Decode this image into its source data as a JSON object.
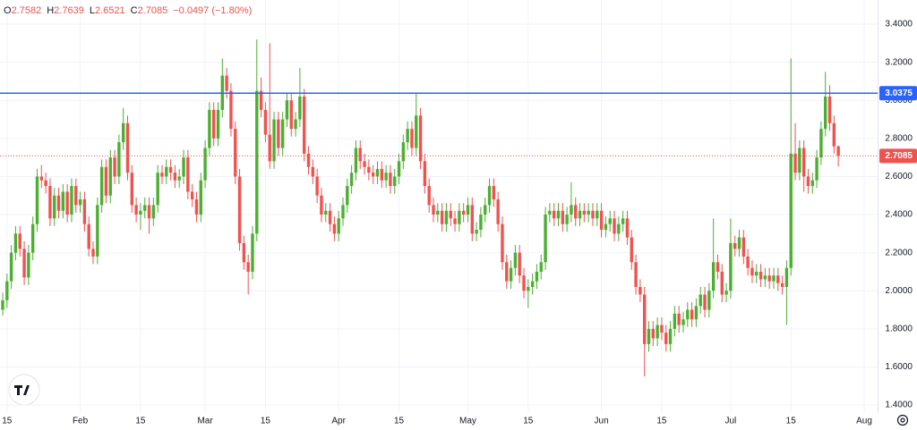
{
  "chart_data": {
    "type": "candlestick",
    "header": {
      "o_label": "O",
      "open": 2.7582,
      "h_label": "H",
      "high": 2.7639,
      "l_label": "L",
      "low": 2.6521,
      "c_label": "C",
      "close": 2.7085,
      "change": "−0.0497 (−1.80%)"
    },
    "up_color": "#4caf32",
    "down_color": "#ef5350",
    "grid": true,
    "ylim": [
      1.358,
      3.527
    ],
    "yticks": [
      {
        "value": 1.4,
        "label": "1.4000"
      },
      {
        "value": 1.6,
        "label": "1.6000"
      },
      {
        "value": 1.8,
        "label": "1.8000"
      },
      {
        "value": 2.0,
        "label": "2.0000"
      },
      {
        "value": 2.2,
        "label": "2.2000"
      },
      {
        "value": 2.4,
        "label": "2.4000"
      },
      {
        "value": 2.6,
        "label": "2.6000"
      },
      {
        "value": 2.8,
        "label": "2.8000"
      },
      {
        "value": 3.0,
        "label": "3.0000"
      },
      {
        "value": 3.2,
        "label": "3.2000"
      },
      {
        "value": 3.4,
        "label": "3.4000"
      }
    ],
    "hline": {
      "value": 3.0375,
      "color": "#2962ff"
    },
    "last_price": {
      "value": 2.7085,
      "color": "#ef5350"
    },
    "categories": [
      null,
      "15",
      null,
      null,
      null,
      null,
      null,
      null,
      null,
      null,
      null,
      null,
      null,
      null,
      null,
      null,
      null,
      null,
      "Feb",
      null,
      null,
      null,
      null,
      null,
      null,
      null,
      null,
      null,
      null,
      null,
      null,
      null,
      "15",
      null,
      null,
      null,
      null,
      null,
      null,
      null,
      null,
      null,
      null,
      null,
      null,
      null,
      null,
      "Mar",
      null,
      null,
      null,
      null,
      null,
      null,
      null,
      null,
      null,
      null,
      null,
      null,
      null,
      "15",
      null,
      null,
      null,
      null,
      null,
      null,
      null,
      null,
      null,
      null,
      null,
      null,
      null,
      null,
      null,
      null,
      "Apr",
      null,
      null,
      null,
      null,
      null,
      null,
      null,
      null,
      null,
      null,
      null,
      null,
      null,
      "15",
      null,
      null,
      null,
      null,
      null,
      null,
      null,
      null,
      null,
      null,
      null,
      null,
      null,
      null,
      null,
      "May",
      null,
      null,
      null,
      null,
      null,
      null,
      null,
      null,
      null,
      null,
      null,
      null,
      null,
      "15",
      null,
      null,
      null,
      null,
      null,
      null,
      null,
      null,
      null,
      null,
      null,
      null,
      null,
      null,
      null,
      null,
      "Jun",
      null,
      null,
      null,
      null,
      null,
      null,
      null,
      null,
      null,
      null,
      null,
      null,
      null,
      "15",
      null,
      null,
      null,
      null,
      null,
      null,
      null,
      null,
      null,
      null,
      null,
      null,
      null,
      null,
      null,
      "Jul",
      null,
      null,
      null,
      null,
      null,
      null,
      null,
      null,
      null,
      null,
      null,
      null,
      null,
      "15",
      null,
      null,
      null,
      null,
      null,
      null,
      null,
      null,
      null,
      null,
      null,
      null,
      null,
      null,
      null,
      null,
      "Aug",
      null
    ],
    "ohlc": [
      [
        1.9,
        1.99,
        1.87,
        1.95
      ],
      [
        1.95,
        2.09,
        1.91,
        2.05
      ],
      [
        2.05,
        2.24,
        2.01,
        2.2
      ],
      [
        2.2,
        2.34,
        2.16,
        2.3
      ],
      [
        2.3,
        2.34,
        2.18,
        2.22
      ],
      [
        2.22,
        2.26,
        2.03,
        2.07
      ],
      [
        2.07,
        2.24,
        2.03,
        2.2
      ],
      [
        2.2,
        2.39,
        2.16,
        2.35
      ],
      [
        2.35,
        2.64,
        2.31,
        2.6
      ],
      [
        2.6,
        2.66,
        2.54,
        2.58
      ],
      [
        2.58,
        2.62,
        2.51,
        2.55
      ],
      [
        2.55,
        2.59,
        2.34,
        2.38
      ],
      [
        2.38,
        2.54,
        2.34,
        2.5
      ],
      [
        2.5,
        2.54,
        2.38,
        2.42
      ],
      [
        2.42,
        2.56,
        2.38,
        2.52
      ],
      [
        2.52,
        2.56,
        2.36,
        2.4
      ],
      [
        2.4,
        2.59,
        2.36,
        2.55
      ],
      [
        2.55,
        2.59,
        2.41,
        2.45
      ],
      [
        2.45,
        2.52,
        2.41,
        2.48
      ],
      [
        2.48,
        2.52,
        2.31,
        2.35
      ],
      [
        2.35,
        2.39,
        2.18,
        2.22
      ],
      [
        2.22,
        2.26,
        2.14,
        2.18
      ],
      [
        2.18,
        2.49,
        2.14,
        2.45
      ],
      [
        2.45,
        2.69,
        2.41,
        2.65
      ],
      [
        2.65,
        2.69,
        2.46,
        2.5
      ],
      [
        2.5,
        2.74,
        2.46,
        2.7
      ],
      [
        2.7,
        2.74,
        2.56,
        2.6
      ],
      [
        2.6,
        2.82,
        2.56,
        2.78
      ],
      [
        2.78,
        2.96,
        2.74,
        2.88
      ],
      [
        2.88,
        2.92,
        2.58,
        2.62
      ],
      [
        2.62,
        2.66,
        2.41,
        2.45
      ],
      [
        2.45,
        2.49,
        2.36,
        2.4
      ],
      [
        2.4,
        2.46,
        2.32,
        2.42
      ],
      [
        2.42,
        2.49,
        2.38,
        2.45
      ],
      [
        2.45,
        2.49,
        2.3,
        2.38
      ],
      [
        2.38,
        2.49,
        2.34,
        2.45
      ],
      [
        2.45,
        2.66,
        2.41,
        2.62
      ],
      [
        2.62,
        2.66,
        2.56,
        2.6
      ],
      [
        2.6,
        2.69,
        2.56,
        2.65
      ],
      [
        2.65,
        2.69,
        2.58,
        2.62
      ],
      [
        2.62,
        2.66,
        2.54,
        2.58
      ],
      [
        2.58,
        2.64,
        2.54,
        2.6
      ],
      [
        2.6,
        2.74,
        2.56,
        2.7
      ],
      [
        2.7,
        2.74,
        2.48,
        2.52
      ],
      [
        2.52,
        2.56,
        2.44,
        2.48
      ],
      [
        2.48,
        2.52,
        2.36,
        2.4
      ],
      [
        2.4,
        2.62,
        2.36,
        2.58
      ],
      [
        2.58,
        2.79,
        2.54,
        2.75
      ],
      [
        2.75,
        2.99,
        2.71,
        2.95
      ],
      [
        2.95,
        2.99,
        2.76,
        2.8
      ],
      [
        2.8,
        2.99,
        2.76,
        2.95
      ],
      [
        2.95,
        3.22,
        2.91,
        3.13
      ],
      [
        3.13,
        3.17,
        3.01,
        3.05
      ],
      [
        3.05,
        3.09,
        2.81,
        2.85
      ],
      [
        2.85,
        2.89,
        2.56,
        2.6
      ],
      [
        2.6,
        2.64,
        2.21,
        2.25
      ],
      [
        2.25,
        2.29,
        2.11,
        2.15
      ],
      [
        2.15,
        2.19,
        1.98,
        2.1
      ],
      [
        2.1,
        2.34,
        2.06,
        2.3
      ],
      [
        2.3,
        3.32,
        2.26,
        3.05
      ],
      [
        3.05,
        3.12,
        2.91,
        2.95
      ],
      [
        2.95,
        2.99,
        2.78,
        2.82
      ],
      [
        2.82,
        3.3,
        2.64,
        2.68
      ],
      [
        2.68,
        2.94,
        2.64,
        2.9
      ],
      [
        2.9,
        2.94,
        2.71,
        2.75
      ],
      [
        2.75,
        2.94,
        2.71,
        2.9
      ],
      [
        2.9,
        3.04,
        2.86,
        3.0
      ],
      [
        3.0,
        3.04,
        2.81,
        2.85
      ],
      [
        2.85,
        2.94,
        2.81,
        2.9
      ],
      [
        2.9,
        3.17,
        2.86,
        3.02
      ],
      [
        3.02,
        3.06,
        2.68,
        2.72
      ],
      [
        2.72,
        2.76,
        2.61,
        2.65
      ],
      [
        2.65,
        2.69,
        2.56,
        2.6
      ],
      [
        2.6,
        2.64,
        2.46,
        2.5
      ],
      [
        2.5,
        2.54,
        2.36,
        2.4
      ],
      [
        2.4,
        2.46,
        2.36,
        2.42
      ],
      [
        2.42,
        2.46,
        2.31,
        2.35
      ],
      [
        2.35,
        2.39,
        2.26,
        2.3
      ],
      [
        2.3,
        2.42,
        2.26,
        2.38
      ],
      [
        2.38,
        2.49,
        2.34,
        2.45
      ],
      [
        2.45,
        2.59,
        2.41,
        2.55
      ],
      [
        2.55,
        2.66,
        2.51,
        2.62
      ],
      [
        2.62,
        2.79,
        2.58,
        2.75
      ],
      [
        2.75,
        2.79,
        2.64,
        2.68
      ],
      [
        2.68,
        2.72,
        2.61,
        2.65
      ],
      [
        2.65,
        2.69,
        2.58,
        2.62
      ],
      [
        2.62,
        2.66,
        2.56,
        2.6
      ],
      [
        2.6,
        2.68,
        2.56,
        2.64
      ],
      [
        2.64,
        2.68,
        2.54,
        2.58
      ],
      [
        2.58,
        2.66,
        2.54,
        2.62
      ],
      [
        2.62,
        2.66,
        2.51,
        2.55
      ],
      [
        2.55,
        2.64,
        2.51,
        2.6
      ],
      [
        2.6,
        2.72,
        2.56,
        2.68
      ],
      [
        2.68,
        2.82,
        2.64,
        2.78
      ],
      [
        2.78,
        2.89,
        2.74,
        2.85
      ],
      [
        2.85,
        2.89,
        2.71,
        2.75
      ],
      [
        2.75,
        3.04,
        2.71,
        2.92
      ],
      [
        2.92,
        2.96,
        2.64,
        2.68
      ],
      [
        2.68,
        2.72,
        2.51,
        2.55
      ],
      [
        2.55,
        2.59,
        2.41,
        2.45
      ],
      [
        2.45,
        2.49,
        2.36,
        2.4
      ],
      [
        2.4,
        2.46,
        2.36,
        2.42
      ],
      [
        2.42,
        2.46,
        2.31,
        2.35
      ],
      [
        2.35,
        2.46,
        2.31,
        2.42
      ],
      [
        2.42,
        2.46,
        2.34,
        2.38
      ],
      [
        2.38,
        2.42,
        2.31,
        2.35
      ],
      [
        2.35,
        2.46,
        2.31,
        2.42
      ],
      [
        2.42,
        2.46,
        2.36,
        2.4
      ],
      [
        2.4,
        2.49,
        2.36,
        2.45
      ],
      [
        2.45,
        2.49,
        2.26,
        2.3
      ],
      [
        2.3,
        2.36,
        2.26,
        2.32
      ],
      [
        2.32,
        2.44,
        2.28,
        2.4
      ],
      [
        2.4,
        2.49,
        2.36,
        2.45
      ],
      [
        2.45,
        2.59,
        2.41,
        2.55
      ],
      [
        2.55,
        2.59,
        2.44,
        2.48
      ],
      [
        2.48,
        2.52,
        2.31,
        2.35
      ],
      [
        2.35,
        2.39,
        2.11,
        2.15
      ],
      [
        2.15,
        2.19,
        2.01,
        2.05
      ],
      [
        2.05,
        2.16,
        2.01,
        2.12
      ],
      [
        2.12,
        2.24,
        2.08,
        2.2
      ],
      [
        2.2,
        2.24,
        2.04,
        2.08
      ],
      [
        2.08,
        2.12,
        1.96,
        2.0
      ],
      [
        2.0,
        2.06,
        1.91,
        2.02
      ],
      [
        2.02,
        2.09,
        1.98,
        2.05
      ],
      [
        2.05,
        2.14,
        2.01,
        2.1
      ],
      [
        2.1,
        2.19,
        2.06,
        2.15
      ],
      [
        2.15,
        2.44,
        2.11,
        2.4
      ],
      [
        2.4,
        2.46,
        2.36,
        2.42
      ],
      [
        2.42,
        2.46,
        2.34,
        2.38
      ],
      [
        2.38,
        2.46,
        2.34,
        2.42
      ],
      [
        2.42,
        2.46,
        2.31,
        2.35
      ],
      [
        2.35,
        2.44,
        2.31,
        2.4
      ],
      [
        2.4,
        2.57,
        2.36,
        2.45
      ],
      [
        2.45,
        2.49,
        2.34,
        2.38
      ],
      [
        2.38,
        2.46,
        2.34,
        2.42
      ],
      [
        2.42,
        2.46,
        2.36,
        2.4
      ],
      [
        2.4,
        2.46,
        2.36,
        2.42
      ],
      [
        2.42,
        2.46,
        2.34,
        2.38
      ],
      [
        2.38,
        2.46,
        2.34,
        2.42
      ],
      [
        2.42,
        2.46,
        2.28,
        2.32
      ],
      [
        2.32,
        2.39,
        2.28,
        2.35
      ],
      [
        2.35,
        2.42,
        2.31,
        2.38
      ],
      [
        2.38,
        2.42,
        2.26,
        2.3
      ],
      [
        2.3,
        2.39,
        2.26,
        2.35
      ],
      [
        2.35,
        2.42,
        2.31,
        2.38
      ],
      [
        2.38,
        2.42,
        2.24,
        2.28
      ],
      [
        2.28,
        2.32,
        2.11,
        2.15
      ],
      [
        2.15,
        2.19,
        1.98,
        2.02
      ],
      [
        2.02,
        2.06,
        1.94,
        1.98
      ],
      [
        1.98,
        2.02,
        1.55,
        1.72
      ],
      [
        1.72,
        1.84,
        1.68,
        1.8
      ],
      [
        1.8,
        1.84,
        1.71,
        1.75
      ],
      [
        1.75,
        1.86,
        1.71,
        1.82
      ],
      [
        1.82,
        1.86,
        1.74,
        1.78
      ],
      [
        1.78,
        1.82,
        1.68,
        1.72
      ],
      [
        1.72,
        1.84,
        1.68,
        1.8
      ],
      [
        1.8,
        1.92,
        1.76,
        1.88
      ],
      [
        1.88,
        1.92,
        1.78,
        1.82
      ],
      [
        1.82,
        1.89,
        1.78,
        1.85
      ],
      [
        1.85,
        1.94,
        1.81,
        1.9
      ],
      [
        1.9,
        1.94,
        1.81,
        1.85
      ],
      [
        1.85,
        1.96,
        1.81,
        1.92
      ],
      [
        1.92,
        2.02,
        1.88,
        1.98
      ],
      [
        1.98,
        2.02,
        1.86,
        1.9
      ],
      [
        1.9,
        2.04,
        1.86,
        2.0
      ],
      [
        2.0,
        2.38,
        1.96,
        2.15
      ],
      [
        2.15,
        2.19,
        2.06,
        2.1
      ],
      [
        2.1,
        2.14,
        1.94,
        1.98
      ],
      [
        1.98,
        2.04,
        1.94,
        2.0
      ],
      [
        2.0,
        2.38,
        1.96,
        2.25
      ],
      [
        2.25,
        2.29,
        2.18,
        2.22
      ],
      [
        2.22,
        2.32,
        2.18,
        2.28
      ],
      [
        2.28,
        2.32,
        2.14,
        2.18
      ],
      [
        2.18,
        2.22,
        2.08,
        2.12
      ],
      [
        2.12,
        2.16,
        2.04,
        2.08
      ],
      [
        2.08,
        2.14,
        2.04,
        2.1
      ],
      [
        2.1,
        2.14,
        2.02,
        2.06
      ],
      [
        2.06,
        2.12,
        2.02,
        2.08
      ],
      [
        2.08,
        2.12,
        2.01,
        2.05
      ],
      [
        2.05,
        2.12,
        2.01,
        2.08
      ],
      [
        2.08,
        2.12,
        2.0,
        2.04
      ],
      [
        2.04,
        2.08,
        1.98,
        2.02
      ],
      [
        2.02,
        2.16,
        1.82,
        2.12
      ],
      [
        2.12,
        3.22,
        2.08,
        2.72
      ],
      [
        2.72,
        2.88,
        2.58,
        2.62
      ],
      [
        2.62,
        2.79,
        2.58,
        2.75
      ],
      [
        2.75,
        2.79,
        2.52,
        2.6
      ],
      [
        2.6,
        2.64,
        2.51,
        2.55
      ],
      [
        2.55,
        2.62,
        2.51,
        2.58
      ],
      [
        2.58,
        2.74,
        2.54,
        2.7
      ],
      [
        2.7,
        2.89,
        2.66,
        2.85
      ],
      [
        2.85,
        3.15,
        2.81,
        3.02
      ],
      [
        3.02,
        3.08,
        2.84,
        2.88
      ],
      [
        2.88,
        2.92,
        2.72,
        2.7582
      ],
      [
        2.7582,
        2.7639,
        2.6521,
        2.7085
      ],
      null,
      null,
      null,
      null,
      null,
      null,
      null
    ]
  }
}
